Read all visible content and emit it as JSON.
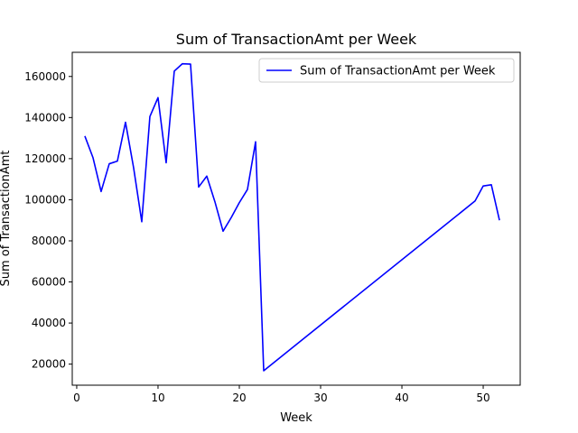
{
  "chart_data": {
    "type": "line",
    "title": "Sum of TransactionAmt per Week",
    "xlabel": "Week",
    "ylabel": "Sum of TransactionAmt",
    "xlim": [
      -0.55,
      54.55
    ],
    "ylim": [
      9750,
      171750
    ],
    "xticks": [
      0,
      10,
      20,
      30,
      40,
      50
    ],
    "xtick_labels": [
      "0",
      "10",
      "20",
      "30",
      "40",
      "50"
    ],
    "yticks": [
      20000,
      40000,
      60000,
      80000,
      100000,
      120000,
      140000,
      160000
    ],
    "ytick_labels": [
      "20000",
      "40000",
      "60000",
      "80000",
      "100000",
      "120000",
      "140000",
      "160000"
    ],
    "grid": false,
    "legend": {
      "position": "top-right"
    },
    "series": [
      {
        "name": "Sum of TransactionAmt per Week",
        "color": "#0000ff",
        "x": [
          1,
          2,
          3,
          4,
          5,
          6,
          7,
          8,
          9,
          10,
          11,
          12,
          13,
          14,
          15,
          16,
          17,
          18,
          19,
          20,
          21,
          22,
          23,
          49,
          50,
          51,
          52
        ],
        "y": [
          131000,
          120500,
          104000,
          117500,
          118800,
          137700,
          115500,
          89300,
          140500,
          149700,
          118000,
          162600,
          166200,
          166000,
          106200,
          111500,
          99000,
          84700,
          91300,
          98600,
          105000,
          128200,
          16800,
          99400,
          106700,
          107300,
          90000
        ]
      }
    ]
  }
}
